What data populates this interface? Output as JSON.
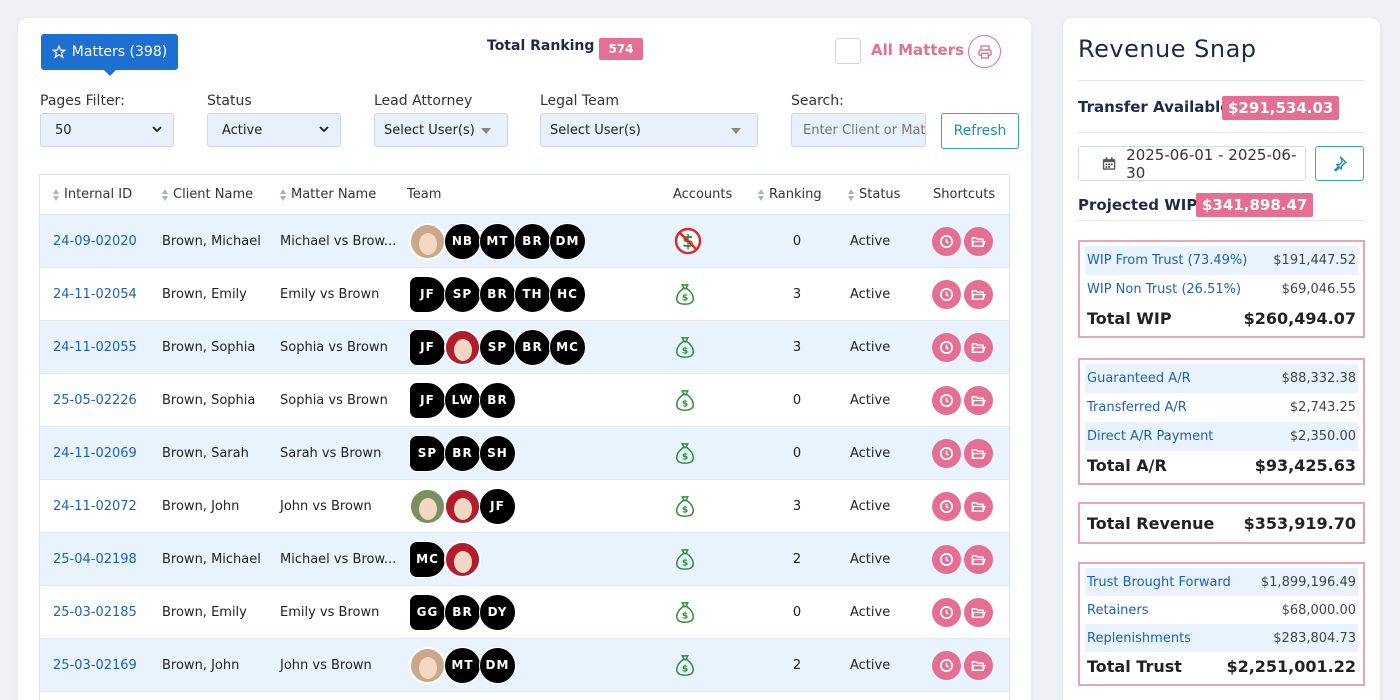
{
  "header": {
    "matters_button": "Matters (398)",
    "total_ranking_label": "Total Ranking",
    "total_ranking_value": "574",
    "all_matters_label": "All Matters"
  },
  "filters": {
    "pages_label": "Pages Filter:",
    "pages_value": "50",
    "status_label": "Status",
    "status_value": "Active",
    "lead_attorney_label": "Lead Attorney",
    "lead_attorney_value": "Select User(s)",
    "legal_team_label": "Legal Team",
    "legal_team_value": "Select User(s)",
    "search_label": "Search:",
    "search_placeholder": "Enter Client or Matter",
    "refresh_label": "Refresh"
  },
  "table": {
    "columns": [
      "Internal ID",
      "Client Name",
      "Matter Name",
      "Team",
      "Accounts",
      "Ranking",
      "Status",
      "Shortcuts"
    ],
    "rows": [
      {
        "id": "24-09-02020",
        "client": "Brown, Michael",
        "matter": "Michael vs Brow...",
        "team": [
          "photo-tan",
          "NB",
          "MT",
          "BR",
          "DM"
        ],
        "account": "no-money-icon",
        "ranking": "0",
        "status": "Active"
      },
      {
        "id": "24-11-02054",
        "client": "Brown, Emily",
        "matter": "Emily vs Brown",
        "team": [
          "JF",
          "SP",
          "BR",
          "TH",
          "HC"
        ],
        "account": "money-bag-icon",
        "ranking": "3",
        "status": "Active"
      },
      {
        "id": "24-11-02055",
        "client": "Brown, Sophia",
        "matter": "Sophia vs Brown",
        "team": [
          "JF",
          "photo-maroon",
          "SP",
          "BR",
          "MC"
        ],
        "account": "money-bag-icon",
        "ranking": "3",
        "status": "Active"
      },
      {
        "id": "25-05-02226",
        "client": "Brown, Sophia",
        "matter": "Sophia vs Brown",
        "team": [
          "JF",
          "LW",
          "BR"
        ],
        "account": "money-bag-icon",
        "ranking": "0",
        "status": "Active"
      },
      {
        "id": "24-11-02069",
        "client": "Brown, Sarah",
        "matter": "Sarah vs Brown",
        "team": [
          "SP",
          "BR",
          "SH"
        ],
        "account": "money-bag-icon",
        "ranking": "0",
        "status": "Active"
      },
      {
        "id": "24-11-02072",
        "client": "Brown, John",
        "matter": "John vs Brown",
        "team": [
          "photo-green",
          "photo-maroon",
          "JF"
        ],
        "account": "money-bag-icon",
        "ranking": "3",
        "status": "Active"
      },
      {
        "id": "25-04-02198",
        "client": "Brown, Michael",
        "matter": "Michael vs Brow...",
        "team": [
          "MC",
          "photo-maroon"
        ],
        "account": "money-bag-icon",
        "ranking": "2",
        "status": "Active"
      },
      {
        "id": "25-03-02185",
        "client": "Brown, Emily",
        "matter": "Emily vs Brown",
        "team": [
          "GG",
          "BR",
          "DY"
        ],
        "account": "money-bag-icon",
        "ranking": "0",
        "status": "Active"
      },
      {
        "id": "25-03-02169",
        "client": "Brown, John",
        "matter": "John vs Brown",
        "team": [
          "photo-tan",
          "MT",
          "DM"
        ],
        "account": "money-bag-icon",
        "ranking": "2",
        "status": "Active"
      }
    ]
  },
  "revenue": {
    "title": "Revenue Snap",
    "transfer_label": "Transfer Available:",
    "transfer_value": "$291,534.03",
    "date_range": "2025-06-01 - 2025-06-30",
    "projected_wip_label": "Projected WIP :",
    "projected_wip_value": "$341,898.47",
    "wip": {
      "lines": [
        {
          "label": "WIP From Trust (73.49%)",
          "value": "$191,447.52"
        },
        {
          "label": "WIP Non Trust (26.51%)",
          "value": "$69,046.55"
        }
      ],
      "total_label": "Total WIP",
      "total_value": "$260,494.07"
    },
    "ar": {
      "lines": [
        {
          "label": "Guaranteed A/R",
          "value": "$88,332.38"
        },
        {
          "label": "Transferred A/R",
          "value": "$2,743.25"
        },
        {
          "label": "Direct A/R Payment",
          "value": "$2,350.00"
        }
      ],
      "total_label": "Total A/R",
      "total_value": "$93,425.63"
    },
    "total_revenue_label": "Total Revenue",
    "total_revenue_value": "$353,919.70",
    "trust": {
      "lines": [
        {
          "label": "Trust Brought Forward",
          "value": "$1,899,196.49"
        },
        {
          "label": "Retainers",
          "value": "$68,000.00"
        },
        {
          "label": "Replenishments",
          "value": "$283,804.73"
        }
      ],
      "total_label": "Total Trust",
      "total_value": "$2,251,001.22"
    }
  },
  "colors": {
    "accent_blue": "#1d6fd1",
    "accent_pink": "#e46f93",
    "teal": "#3aa6b9",
    "row_alt": "#e9f3fd"
  }
}
